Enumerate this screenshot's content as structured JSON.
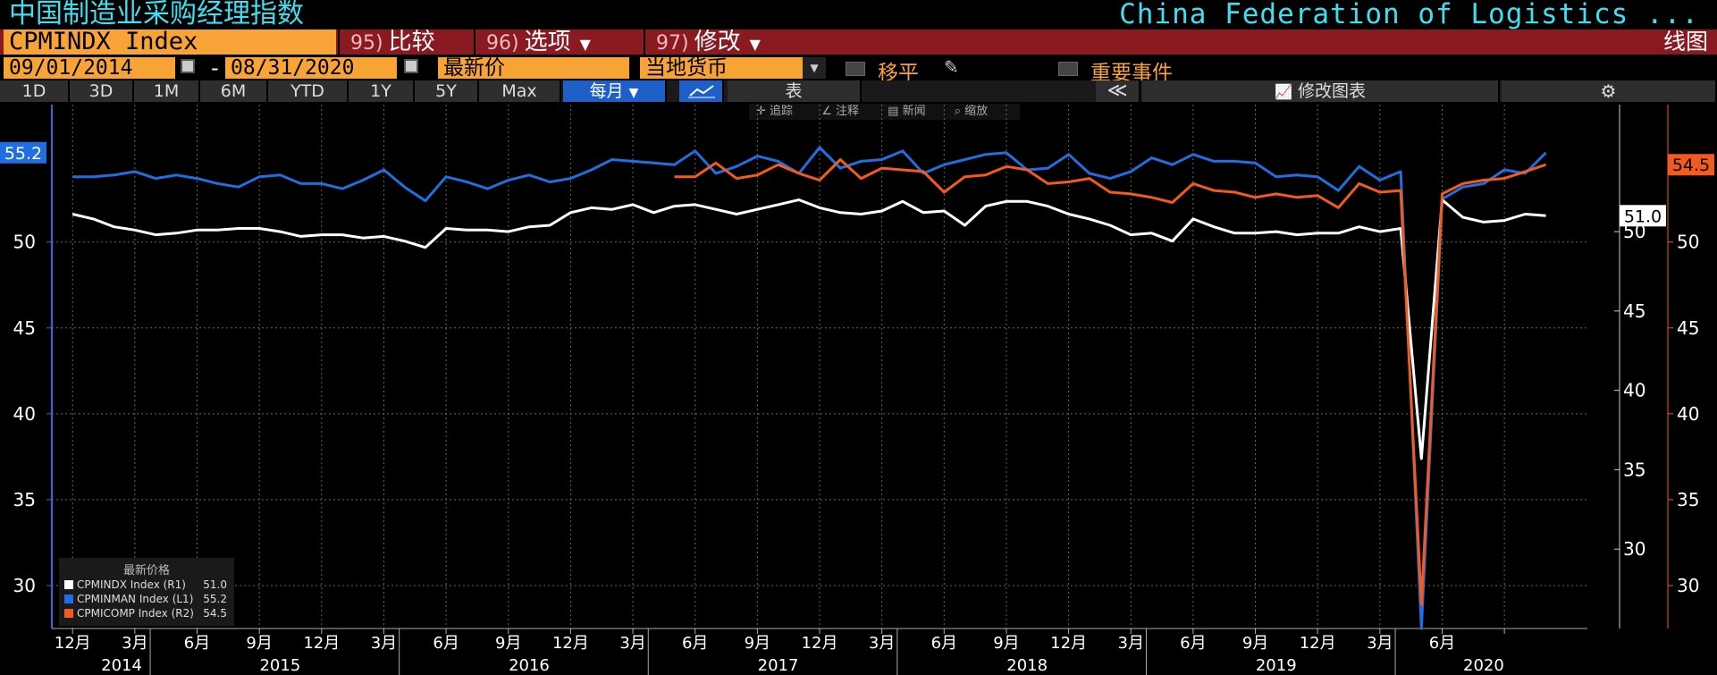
{
  "header": {
    "title_cn": "中国制造业采购经理指数",
    "title_en": "China Federation of Logistics ...",
    "ticker": "CPMINDX Index",
    "buttons": [
      {
        "num": "95)",
        "label": "比较"
      },
      {
        "num": "96)",
        "label": "选项"
      },
      {
        "num": "97)",
        "label": "修改"
      }
    ],
    "chart_type_label": "线图"
  },
  "controls": {
    "start_date": "09/01/2014",
    "end_date": "08/31/2020",
    "dash": "-",
    "price_field": "最新价",
    "currency": "当地货币",
    "moving_avg_label": "移平",
    "events_label": "重要事件",
    "periods": [
      "1D",
      "3D",
      "1M",
      "6M",
      "YTD",
      "1Y",
      "5Y",
      "Max"
    ],
    "frequency": "每月",
    "table_label": "表",
    "collapse_glyph": "≪",
    "edit_chart_label": "修改图表",
    "settings_glyph": "⚙"
  },
  "mini_tools": [
    "追踪",
    "注释",
    "新闻",
    "缩放"
  ],
  "legend": {
    "title": "最新价格",
    "items": [
      {
        "name": "CPMINDX Index  (R1)",
        "value": "51.0",
        "color": "#ffffff"
      },
      {
        "name": "CPMINMAN Index  (L1)",
        "value": "55.2",
        "color": "#1f6fe0"
      },
      {
        "name": "CPMICOMP Index  (R2)",
        "value": "54.5",
        "color": "#f25a1e"
      }
    ]
  },
  "last_values": {
    "L1": "55.2",
    "R1": "51.0",
    "R2": "54.5"
  },
  "chart_data": {
    "type": "line",
    "x_start": "2014-09",
    "x_month_labels": [
      "12月",
      "3月",
      "6月",
      "9月",
      "12月",
      "3月",
      "6月",
      "9月",
      "12月",
      "3月",
      "6月",
      "9月",
      "12月",
      "3月",
      "6月",
      "9月",
      "12月",
      "3月",
      "6月",
      "9月",
      "12月",
      "3月",
      "6月"
    ],
    "x_year_labels": [
      "2014",
      "2015",
      "2016",
      "2017",
      "2018",
      "2019",
      "2020"
    ],
    "left_axis": {
      "ticks": [
        30,
        35,
        40,
        45,
        50
      ],
      "ylim": [
        27.5,
        58
      ]
    },
    "right1_axis": {
      "ticks": [
        30,
        35,
        40,
        45,
        50
      ],
      "ylim": [
        25,
        58
      ]
    },
    "right2_axis": {
      "ticks": [
        30,
        35,
        40,
        45,
        50
      ],
      "ylim": [
        27.5,
        58
      ]
    },
    "series": [
      {
        "name": "CPMINMAN Index",
        "axis": "L1",
        "color": "#1f6fe0",
        "values": [
          53.8,
          53.8,
          53.9,
          54.1,
          53.7,
          53.9,
          53.7,
          53.4,
          53.2,
          53.8,
          53.9,
          53.4,
          53.4,
          53.1,
          53.6,
          54.2,
          53.2,
          52.4,
          53.8,
          53.5,
          53.1,
          53.6,
          53.9,
          53.5,
          53.7,
          54.2,
          54.8,
          54.7,
          54.6,
          54.5,
          55.3,
          54.0,
          54.4,
          55.0,
          54.7,
          54.0,
          55.5,
          54.3,
          54.7,
          54.8,
          55.3,
          54.0,
          54.5,
          54.8,
          55.1,
          55.2,
          54.2,
          54.3,
          55.1,
          54.0,
          53.7,
          54.1,
          54.9,
          54.5,
          55.1,
          54.7,
          54.7,
          54.6,
          53.8,
          53.9,
          53.8,
          53.0,
          54.4,
          53.6,
          54.1,
          27.5,
          52.5,
          53.2,
          53.4,
          54.2,
          54.0,
          55.2
        ]
      },
      {
        "name": "CPMINDX Index",
        "axis": "R1",
        "color": "#ffffff",
        "values": [
          51.1,
          50.8,
          50.3,
          50.1,
          49.8,
          49.9,
          50.1,
          50.1,
          50.2,
          50.2,
          50.0,
          49.7,
          49.8,
          49.8,
          49.6,
          49.7,
          49.4,
          49.0,
          50.2,
          50.1,
          50.1,
          50.0,
          50.3,
          50.4,
          51.2,
          51.5,
          51.4,
          51.7,
          51.2,
          51.6,
          51.7,
          51.4,
          51.1,
          51.4,
          51.7,
          52.0,
          51.5,
          51.2,
          51.1,
          51.3,
          51.9,
          51.2,
          51.3,
          50.4,
          51.6,
          51.9,
          51.9,
          51.6,
          51.1,
          50.8,
          50.4,
          49.8,
          49.9,
          49.4,
          50.8,
          50.3,
          49.9,
          49.9,
          50.0,
          49.8,
          49.9,
          49.9,
          50.3,
          50.0,
          50.2,
          35.7,
          52.0,
          50.9,
          50.6,
          50.7,
          51.1,
          51.0
        ]
      },
      {
        "name": "CPMICOMP Index",
        "axis": "R2",
        "color": "#f25a1e",
        "values": [
          null,
          null,
          null,
          null,
          null,
          null,
          null,
          null,
          null,
          null,
          null,
          null,
          null,
          null,
          null,
          null,
          null,
          null,
          null,
          null,
          null,
          null,
          null,
          null,
          null,
          null,
          null,
          null,
          null,
          53.8,
          53.8,
          54.6,
          53.7,
          53.9,
          54.5,
          54.0,
          53.6,
          54.8,
          53.7,
          54.3,
          54.2,
          54.1,
          52.9,
          53.8,
          53.9,
          54.4,
          54.2,
          53.4,
          53.5,
          53.7,
          52.9,
          52.8,
          52.6,
          52.3,
          53.4,
          53.0,
          52.9,
          52.6,
          52.8,
          52.6,
          52.7,
          52.0,
          53.4,
          52.9,
          53.0,
          28.9,
          52.8,
          53.4,
          53.6,
          53.7,
          54.1,
          54.5
        ]
      }
    ]
  }
}
